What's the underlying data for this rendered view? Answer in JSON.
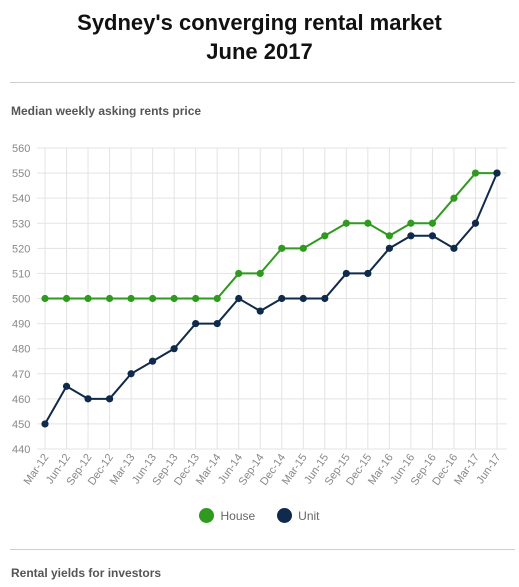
{
  "header": {
    "title_line1": "Sydney's converging rental market",
    "title_line2": "June 2017",
    "subtitle": "Median weekly asking rents price"
  },
  "footer": {
    "text": "Rental yields for investors"
  },
  "colors": {
    "house": "#2e9a1e",
    "unit": "#0f2a4a",
    "grid": "#e3e3e3",
    "tick": "#888888"
  },
  "chart_data": {
    "type": "line",
    "categories": [
      "Mar-12",
      "Jun-12",
      "Sep-12",
      "Dec-12",
      "Mar-13",
      "Jun-13",
      "Sep-13",
      "Dec-13",
      "Mar-14",
      "Jun-14",
      "Sep-14",
      "Dec-14",
      "Mar-15",
      "Jun-15",
      "Sep-15",
      "Dec-15",
      "Mar-16",
      "Jun-16",
      "Sep-16",
      "Dec-16",
      "Mar-17",
      "Jun-17"
    ],
    "series": [
      {
        "name": "House",
        "color": "#2e9a1e",
        "values": [
          500,
          500,
          500,
          500,
          500,
          500,
          500,
          500,
          500,
          510,
          510,
          520,
          520,
          525,
          530,
          530,
          525,
          530,
          530,
          540,
          550,
          550
        ]
      },
      {
        "name": "Unit",
        "color": "#0f2a4a",
        "values": [
          450,
          465,
          460,
          460,
          470,
          475,
          480,
          490,
          490,
          500,
          495,
          500,
          500,
          500,
          510,
          510,
          520,
          525,
          525,
          520,
          530,
          550
        ]
      }
    ],
    "ylim": [
      440,
      560
    ],
    "yticks": [
      440,
      450,
      460,
      470,
      480,
      490,
      500,
      510,
      520,
      530,
      540,
      550,
      560
    ],
    "grid": true,
    "legend": "bottom-center"
  }
}
